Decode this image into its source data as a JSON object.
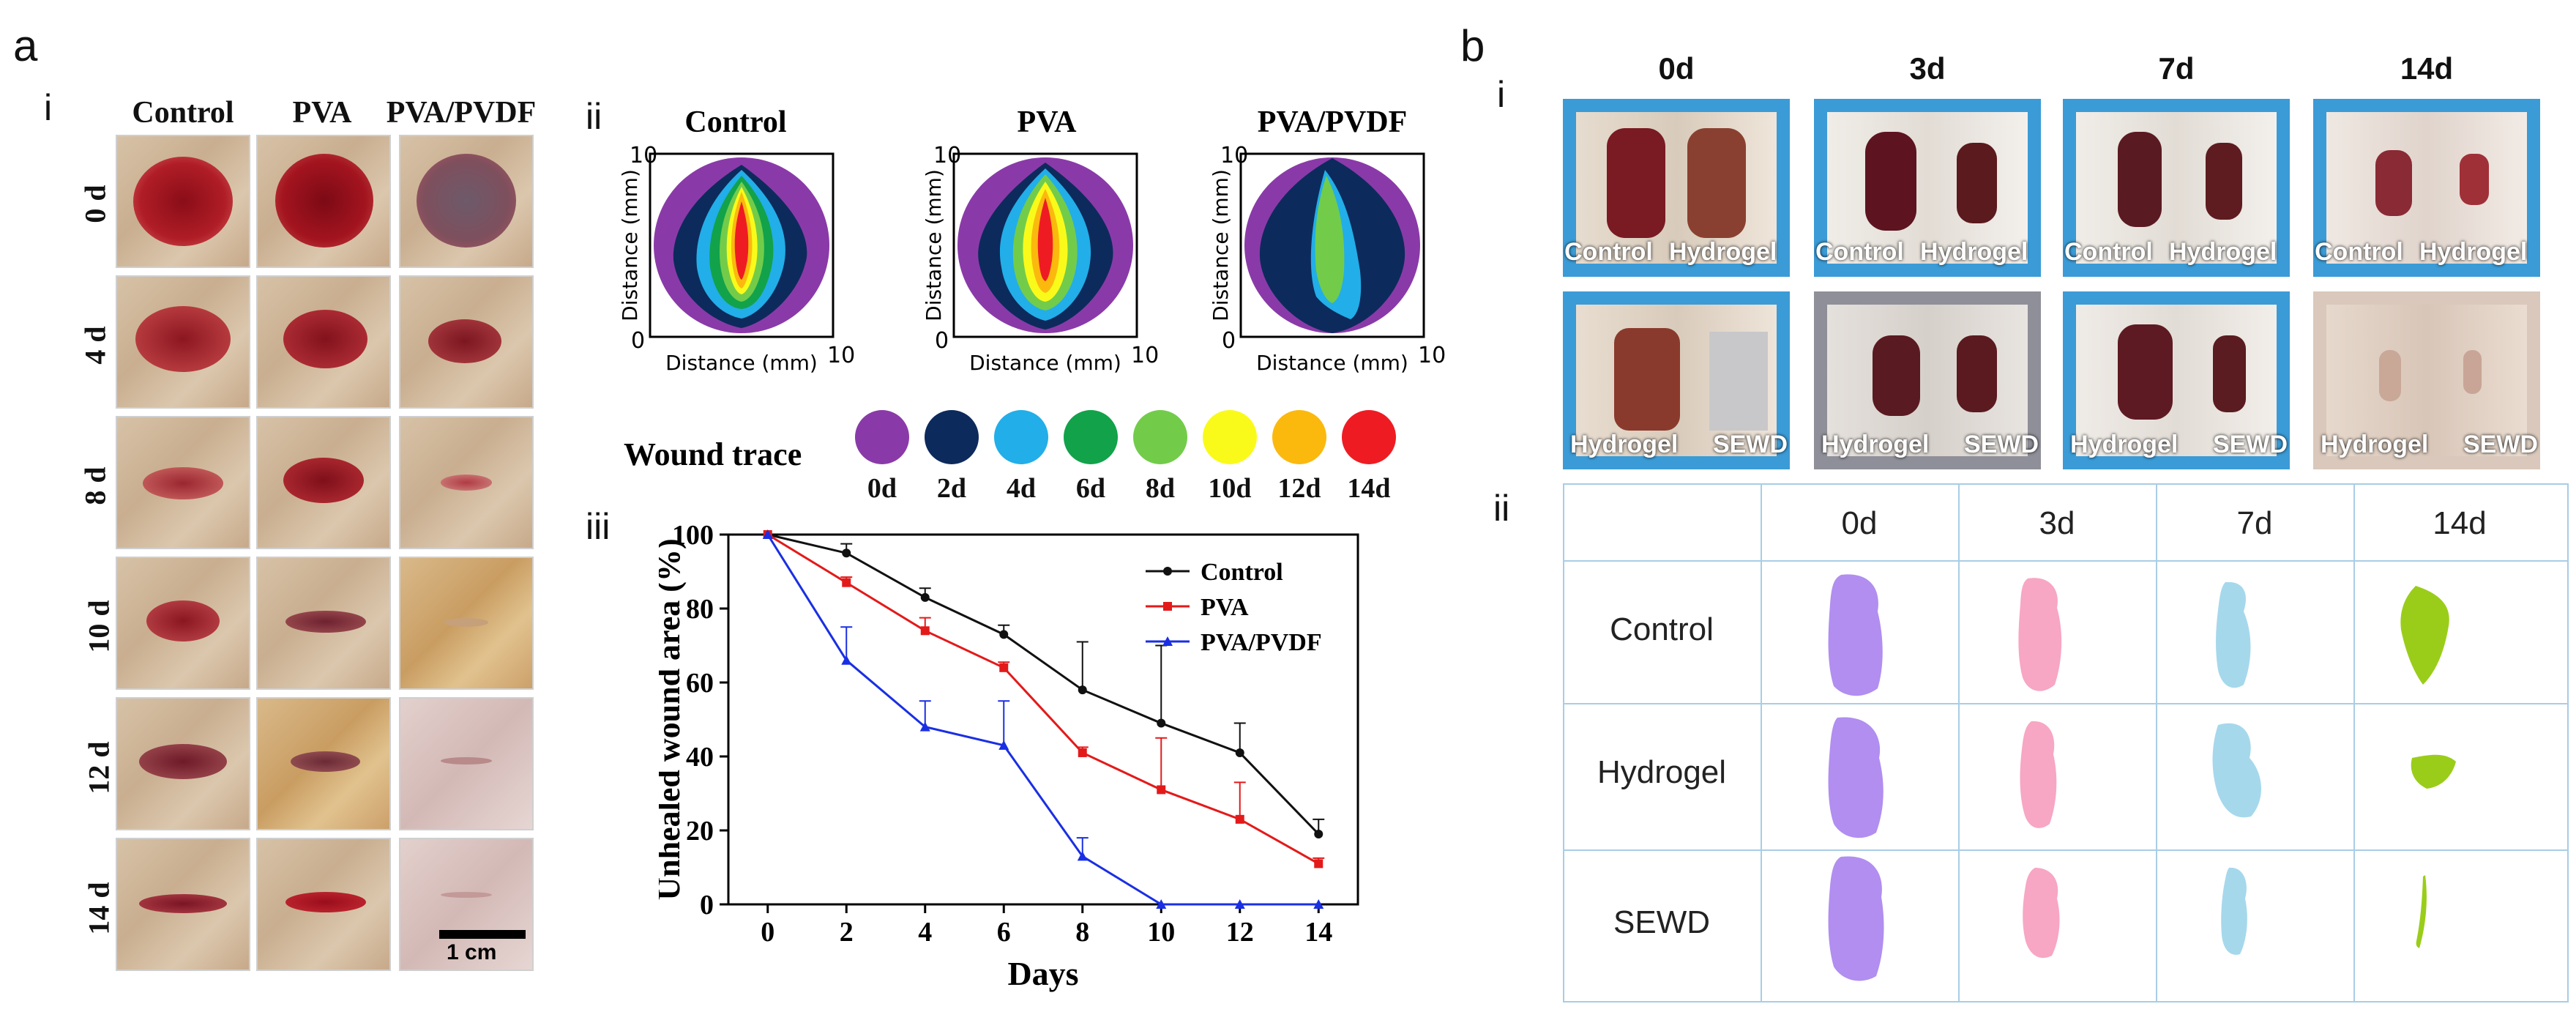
{
  "figure": {
    "panel_a": "a",
    "panel_b": "b",
    "a_sub_i": "i",
    "a_sub_ii": "ii",
    "a_sub_iii": "iii",
    "b_sub_i": "i",
    "b_sub_ii": "ii"
  },
  "a_i": {
    "columns": [
      "Control",
      "PVA",
      "PVA/PVDF"
    ],
    "rows": [
      "0 d",
      "4 d",
      "8 d",
      "10 d",
      "12 d",
      "14 d"
    ],
    "scale_bar": "1 cm"
  },
  "a_ii": {
    "plots": [
      {
        "title": "Control",
        "xlabel": "Distance (mm)",
        "ylabel": "Distance (mm)",
        "x0": "0",
        "x1": "10",
        "y0": "0",
        "y1": "10"
      },
      {
        "title": "PVA",
        "xlabel": "Distance (mm)",
        "ylabel": "Distance (mm)",
        "x0": "0",
        "x1": "10",
        "y0": "0",
        "y1": "10"
      },
      {
        "title": "PVA/PVDF",
        "xlabel": "Distance (mm)",
        "ylabel": "Distance (mm)",
        "x0": "0",
        "x1": "10",
        "y0": "0",
        "y1": "10"
      }
    ],
    "legend_title": "Wound trace",
    "legend": [
      {
        "label": "0d",
        "color": "#8a3aa8"
      },
      {
        "label": "2d",
        "color": "#0d2a5c"
      },
      {
        "label": "4d",
        "color": "#22aee8"
      },
      {
        "label": "6d",
        "color": "#12a24a"
      },
      {
        "label": "8d",
        "color": "#72cc4a"
      },
      {
        "label": "10d",
        "color": "#fafa1a"
      },
      {
        "label": "12d",
        "color": "#fbb90e"
      },
      {
        "label": "14d",
        "color": "#ee1c22"
      }
    ]
  },
  "chart_data": {
    "type": "line",
    "title": "",
    "xlabel": "Days",
    "ylabel": "Unhealed wound area (%)",
    "x": [
      0,
      2,
      4,
      6,
      8,
      10,
      12,
      14
    ],
    "xlim": [
      -1,
      15
    ],
    "ylim": [
      0,
      100
    ],
    "xticks": [
      "0",
      "2",
      "4",
      "6",
      "8",
      "10",
      "12",
      "14"
    ],
    "yticks": [
      "0",
      "20",
      "40",
      "60",
      "80",
      "100"
    ],
    "series": [
      {
        "name": "Control",
        "color": "#111111",
        "values": [
          100,
          95,
          83,
          73,
          58,
          49,
          41,
          19
        ],
        "err": [
          0,
          2.5,
          2.5,
          2.5,
          13,
          21,
          8,
          4
        ]
      },
      {
        "name": "PVA",
        "color": "#e31a1a",
        "values": [
          100,
          87,
          74,
          64,
          41,
          31,
          23,
          11
        ],
        "err": [
          0,
          1.5,
          3.5,
          1.5,
          1.5,
          14,
          10,
          1.5
        ]
      },
      {
        "name": "PVA/PVDF",
        "color": "#1a2fe3",
        "values": [
          100,
          66,
          48,
          43,
          13,
          0,
          0,
          0
        ],
        "err": [
          0,
          9,
          7,
          12,
          5,
          0,
          0,
          0
        ]
      }
    ],
    "legend_position": "top-right"
  },
  "b_i": {
    "columns": [
      "0d",
      "3d",
      "7d",
      "14d"
    ],
    "top_labels": [
      [
        "Control",
        "Hydrogel"
      ],
      [
        "Control",
        "Hydrogel"
      ],
      [
        "Control",
        "Hydrogel"
      ],
      [
        "Control",
        "Hydrogel"
      ]
    ],
    "bottom_labels": [
      [
        "Hydrogel",
        "SEWD"
      ],
      [
        "Hydrogel",
        "SEWD"
      ],
      [
        "Hydrogel",
        "SEWD"
      ],
      [
        "Hydrogel",
        "SEWD"
      ]
    ]
  },
  "b_ii": {
    "columns": [
      "0d",
      "3d",
      "7d",
      "14d"
    ],
    "rows": [
      "Control",
      "Hydrogel",
      "SEWD"
    ],
    "colors": [
      "#b18ef0",
      "#f7a6c4",
      "#a6d8ec",
      "#9acd1a"
    ]
  }
}
